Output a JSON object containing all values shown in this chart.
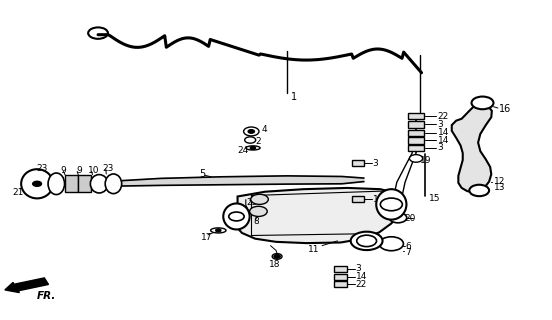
{
  "bg_color": "#ffffff",
  "lc": "#000000",
  "fr_label": "FR."
}
